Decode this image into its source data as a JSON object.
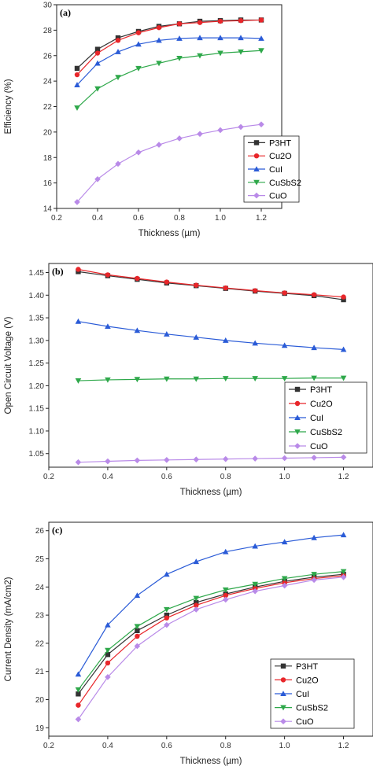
{
  "chart_data": [
    {
      "type": "line",
      "panel_label": "(a)",
      "xlabel": "Thickness (µm)",
      "ylabel": "Efficiency (%)",
      "xlim": [
        0.2,
        1.3
      ],
      "ylim": [
        14,
        30
      ],
      "xticks": [
        "0.2",
        "0.4",
        "0.6",
        "0.8",
        "1.0",
        "1.2"
      ],
      "yticks": [
        "14",
        "16",
        "18",
        "20",
        "22",
        "24",
        "26",
        "28",
        "30"
      ],
      "grid": false,
      "legend_position": "bottom-right",
      "x": [
        0.3,
        0.4,
        0.5,
        0.6,
        0.7,
        0.8,
        0.9,
        1.0,
        1.1,
        1.2
      ],
      "series": [
        {
          "name": "P3HT",
          "color": "#333333",
          "marker": "square",
          "values": [
            25.0,
            26.5,
            27.4,
            27.9,
            28.3,
            28.5,
            28.7,
            28.75,
            28.8,
            28.8
          ]
        },
        {
          "name": "Cu2O",
          "color": "#e8262a",
          "marker": "circle",
          "values": [
            24.5,
            26.2,
            27.2,
            27.8,
            28.2,
            28.5,
            28.6,
            28.7,
            28.75,
            28.8
          ]
        },
        {
          "name": "CuI",
          "color": "#2a5bd7",
          "marker": "triangle-up",
          "values": [
            23.7,
            25.4,
            26.3,
            26.9,
            27.2,
            27.35,
            27.4,
            27.4,
            27.4,
            27.35
          ]
        },
        {
          "name": "CuSbS2",
          "color": "#2ea84a",
          "marker": "triangle-down",
          "values": [
            21.9,
            23.4,
            24.3,
            25.0,
            25.4,
            25.8,
            26.0,
            26.2,
            26.3,
            26.4
          ]
        },
        {
          "name": "CuO",
          "color": "#b98ae8",
          "marker": "diamond",
          "values": [
            14.5,
            16.3,
            17.5,
            18.4,
            19.0,
            19.5,
            19.85,
            20.15,
            20.4,
            20.6
          ]
        }
      ]
    },
    {
      "type": "line",
      "panel_label": "(b)",
      "xlabel": "Thickness (µm)",
      "ylabel": "Open Circuit Voltage (V)",
      "xlim": [
        0.2,
        1.3
      ],
      "ylim": [
        1.02,
        1.47
      ],
      "xticks": [
        "0.2",
        "0.4",
        "0.6",
        "0.8",
        "1.0",
        "1.2"
      ],
      "yticks": [
        "1.05",
        "1.10",
        "1.15",
        "1.20",
        "1.25",
        "1.30",
        "1.35",
        "1.40",
        "1.45"
      ],
      "grid": false,
      "legend_position": "bottom-right",
      "x": [
        0.3,
        0.4,
        0.5,
        0.6,
        0.7,
        0.8,
        0.9,
        1.0,
        1.1,
        1.2
      ],
      "series": [
        {
          "name": "P3HT",
          "color": "#333333",
          "marker": "square",
          "values": [
            1.452,
            1.443,
            1.435,
            1.427,
            1.421,
            1.415,
            1.409,
            1.404,
            1.399,
            1.39
          ]
        },
        {
          "name": "Cu2O",
          "color": "#e8262a",
          "marker": "circle",
          "values": [
            1.457,
            1.445,
            1.437,
            1.429,
            1.422,
            1.416,
            1.41,
            1.405,
            1.401,
            1.396
          ]
        },
        {
          "name": "CuI",
          "color": "#2a5bd7",
          "marker": "triangle-up",
          "values": [
            1.342,
            1.331,
            1.322,
            1.314,
            1.307,
            1.3,
            1.294,
            1.289,
            1.284,
            1.28
          ]
        },
        {
          "name": "CuSbS2",
          "color": "#2ea84a",
          "marker": "triangle-down",
          "values": [
            1.211,
            1.213,
            1.214,
            1.215,
            1.215,
            1.216,
            1.216,
            1.216,
            1.217,
            1.217
          ]
        },
        {
          "name": "CuO",
          "color": "#b98ae8",
          "marker": "diamond",
          "values": [
            1.031,
            1.033,
            1.035,
            1.036,
            1.037,
            1.038,
            1.039,
            1.04,
            1.041,
            1.042
          ]
        }
      ]
    },
    {
      "type": "line",
      "panel_label": "(c)",
      "xlabel": "Thickness (µm)",
      "ylabel": "Current Density (mA/cm2)",
      "xlim": [
        0.2,
        1.3
      ],
      "ylim": [
        18.7,
        26.3
      ],
      "xticks": [
        "0.2",
        "0.4",
        "0.6",
        "0.8",
        "1.0",
        "1.2"
      ],
      "yticks": [
        "19",
        "20",
        "21",
        "22",
        "23",
        "24",
        "25",
        "26"
      ],
      "grid": false,
      "legend_position": "bottom-right",
      "x": [
        0.3,
        0.4,
        0.5,
        0.6,
        0.7,
        0.8,
        0.9,
        1.0,
        1.1,
        1.2
      ],
      "series": [
        {
          "name": "P3HT",
          "color": "#333333",
          "marker": "square",
          "values": [
            20.2,
            21.6,
            22.45,
            23.0,
            23.45,
            23.75,
            24.0,
            24.2,
            24.35,
            24.45
          ]
        },
        {
          "name": "Cu2O",
          "color": "#e8262a",
          "marker": "circle",
          "values": [
            19.8,
            21.3,
            22.25,
            22.9,
            23.35,
            23.7,
            23.95,
            24.15,
            24.3,
            24.4
          ]
        },
        {
          "name": "CuI",
          "color": "#2a5bd7",
          "marker": "triangle-up",
          "values": [
            20.9,
            22.65,
            23.7,
            24.45,
            24.9,
            25.25,
            25.45,
            25.6,
            25.75,
            25.85
          ]
        },
        {
          "name": "CuSbS2",
          "color": "#2ea84a",
          "marker": "triangle-down",
          "values": [
            20.35,
            21.75,
            22.6,
            23.2,
            23.6,
            23.9,
            24.1,
            24.3,
            24.45,
            24.55
          ]
        },
        {
          "name": "CuO",
          "color": "#b98ae8",
          "marker": "diamond",
          "values": [
            19.3,
            20.8,
            21.9,
            22.65,
            23.2,
            23.55,
            23.85,
            24.05,
            24.25,
            24.35
          ]
        }
      ]
    }
  ]
}
